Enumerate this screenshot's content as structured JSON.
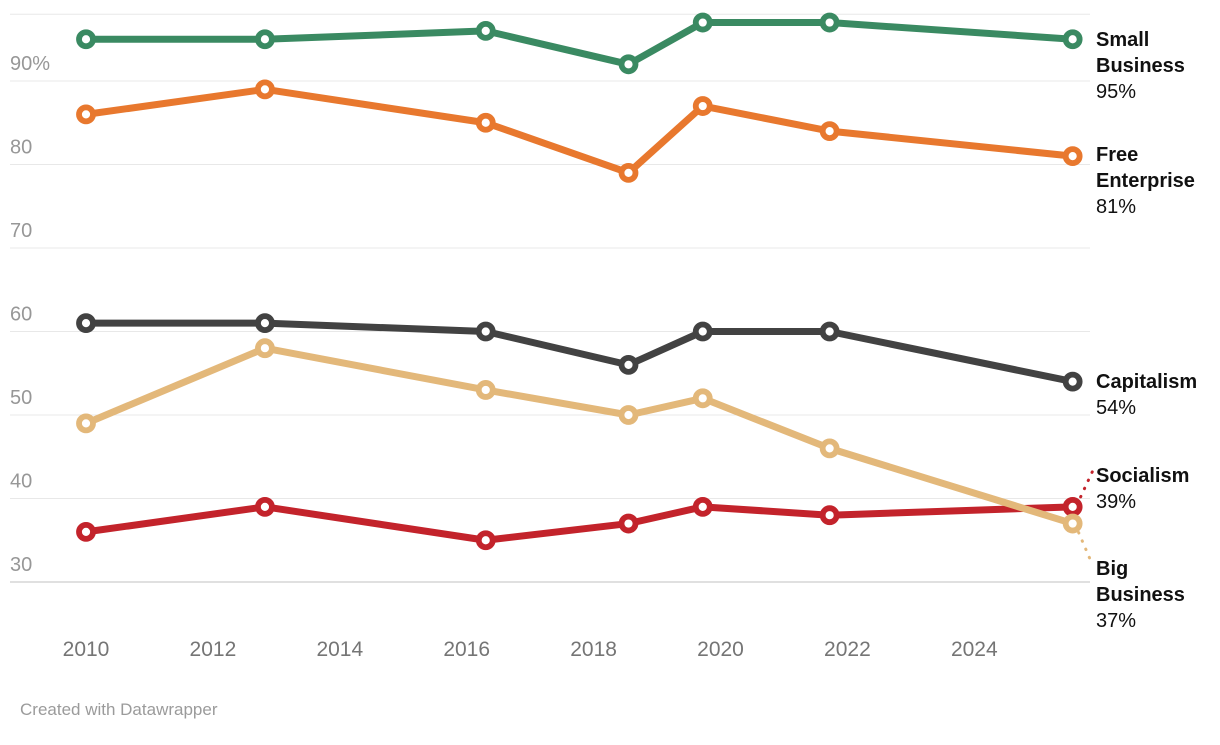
{
  "chart_data": {
    "type": "line",
    "x": [
      2010,
      2012.82,
      2016.3,
      2018.55,
      2019.72,
      2021.72,
      2025.55
    ],
    "x_ticks": [
      2010,
      2012,
      2014,
      2016,
      2018,
      2020,
      2022,
      2024
    ],
    "x_tick_labels": [
      "2010",
      "2012",
      "2014",
      "2016",
      "2018",
      "2020",
      "2022",
      "2024"
    ],
    "y_ticks": [
      90,
      80,
      70,
      60,
      50,
      40,
      30
    ],
    "y_tick_labels": [
      "90%",
      "80",
      "70",
      "60",
      "50",
      "40",
      "30"
    ],
    "ylim": [
      30,
      98
    ],
    "grid": true,
    "legend_position": "right-edge-labels",
    "series": [
      {
        "name": "Small Business",
        "end_label": "95%",
        "color": "#3a8a62",
        "values": [
          95,
          95,
          96,
          92,
          97,
          97,
          95
        ]
      },
      {
        "name": "Free Enterprise",
        "end_label": "81%",
        "color": "#e8782e",
        "values": [
          86,
          89,
          85,
          79,
          87,
          84,
          81
        ]
      },
      {
        "name": "Capitalism",
        "end_label": "54%",
        "color": "#424242",
        "values": [
          61,
          61,
          60,
          56,
          60,
          60,
          54
        ]
      },
      {
        "name": "Socialism",
        "end_label": "39%",
        "color": "#c3232b",
        "values": [
          36,
          39,
          35,
          37,
          39,
          38,
          39
        ]
      },
      {
        "name": "Big Business",
        "end_label": "37%",
        "color": "#e3b87a",
        "values": [
          49,
          58,
          53,
          50,
          52,
          46,
          37
        ]
      }
    ]
  },
  "footer": {
    "text": "Created with Datawrapper"
  }
}
